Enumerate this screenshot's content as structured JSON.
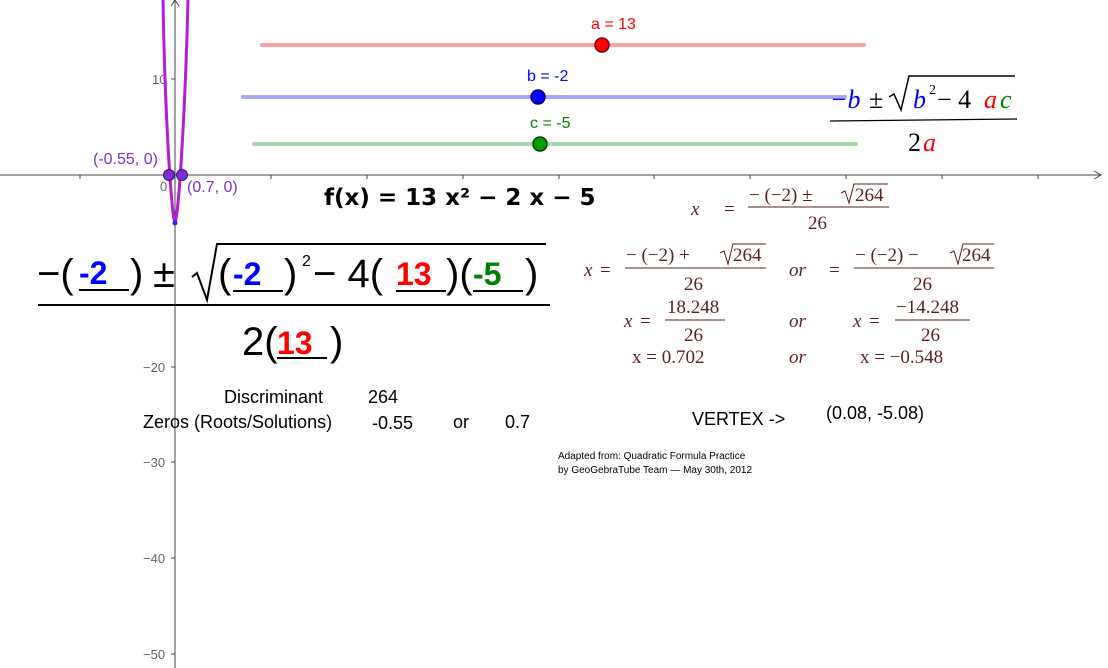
{
  "graph": {
    "tick_labels": {
      "y10": "10",
      "origin": "0",
      "yneg20": "−20",
      "yneg30": "−30",
      "yneg40": "−40",
      "yneg50": "−50"
    },
    "points": {
      "root_left": "(-0.55, 0)",
      "root_right": "(0.7, 0)"
    },
    "colors": {
      "parabola": "#b41ed2",
      "point": "#7b2fd6",
      "point_label": "#7b2fd6",
      "axis": "#444444"
    }
  },
  "sliders": [
    {
      "label": "a = 13",
      "value": 13,
      "min": -20,
      "max": 20,
      "color": "#ff0000",
      "line_color": "#f6a3a3"
    },
    {
      "label": "b = -2",
      "value": -2,
      "min": -20,
      "max": 20,
      "color": "#0000ff",
      "line_color": "#a6a6f4"
    },
    {
      "label": "c = -5",
      "value": -5,
      "min": -20,
      "max": 20,
      "color": "#008000",
      "line_color": "#a6dda6"
    }
  ],
  "formula_generic": {
    "neg_b": "−b",
    "pm": "±",
    "b": "b",
    "sq": "2",
    "minus4": " − 4",
    "a": "a",
    "c": "c",
    "two": "2",
    "a2": "a"
  },
  "function_def": "f(x) = 13 x² − 2 x − 5",
  "big_formula": {
    "neg": "−(",
    "b1": "-2",
    "close1": ")",
    "pm": "±",
    "open2": "(",
    "b2": "-2",
    "close2": ")",
    "sq": "2",
    "minus4": " − 4(",
    "a1": "13",
    "mid": ")(",
    "c1": "-5",
    "close3": ")",
    "den_two": "2(",
    "a2": "13",
    "den_close": ")"
  },
  "steps": {
    "row1": {
      "x": "x",
      "eq": "=",
      "num": "− (−2) ± √264",
      "num_pre": "− (−2) ± ",
      "rad": "264",
      "den": "26"
    },
    "row2_left": {
      "x": "x",
      "eq": "=",
      "num_pre": "− (−2) + ",
      "rad": "264",
      "den": "26"
    },
    "or": "or",
    "row2_right": {
      "eq": "=",
      "num_pre": "− (−2) − ",
      "rad": "264",
      "den": "26"
    },
    "row3_left": {
      "x": "x",
      "eq": "=",
      "num": "18.248",
      "den": "26"
    },
    "row3_right": {
      "x": "x",
      "eq": "=",
      "num": "−14.248",
      "den": "26"
    },
    "row4_left": "x = 0.702",
    "row4_right": "x = −0.548"
  },
  "summary": {
    "discriminant_label": "Discriminant",
    "discriminant_value": "264",
    "zeros_label": "Zeros (Roots/Solutions)",
    "zero1": "-0.55",
    "or": "or",
    "zero2": "0.7",
    "vertex_label": "VERTEX ->",
    "vertex_value": "(0.08, -5.08)"
  },
  "credit": {
    "line1": "Adapted from: Quadratic Formula Practice",
    "line2": "by GeoGebraTube Team — May 30th, 2012"
  }
}
